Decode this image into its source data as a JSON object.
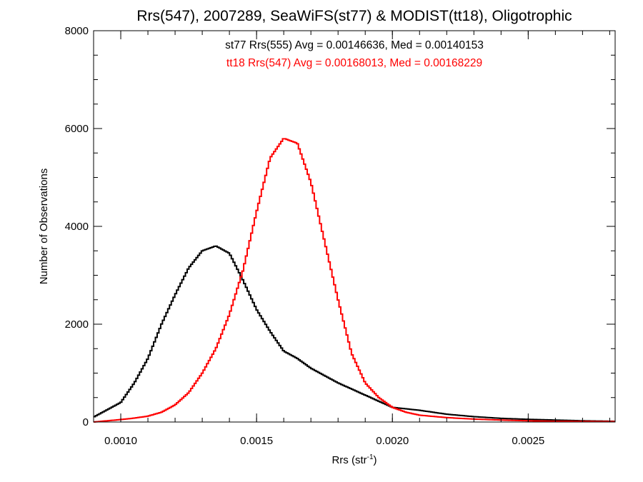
{
  "chart_data": {
    "type": "histogram",
    "title": "Rrs(547), 2007289, SeaWiFS(st77) & MODIST(tt18), Oligotrophic",
    "xlabel": {
      "main": "Rrs (str",
      "sup": "-1",
      "close": ")"
    },
    "ylabel": "Number of Observations",
    "xlim": [
      0.0009,
      0.00282
    ],
    "ylim": [
      0,
      8000
    ],
    "xticks": [
      {
        "value": 0.001,
        "label": "0.0010"
      },
      {
        "value": 0.0015,
        "label": "0.0015"
      },
      {
        "value": 0.002,
        "label": "0.0020"
      },
      {
        "value": 0.0025,
        "label": "0.0025"
      }
    ],
    "yticks": [
      {
        "value": 0,
        "label": "0"
      },
      {
        "value": 2000,
        "label": "2000"
      },
      {
        "value": 4000,
        "label": "4000"
      },
      {
        "value": 6000,
        "label": "6000"
      },
      {
        "value": 8000,
        "label": "8000"
      }
    ],
    "annotations": [
      {
        "text": "st77 Rrs(555) Avg = 0.00146636, Med = 0.00140153",
        "color": "#000000"
      },
      {
        "text": "tt18 Rrs(547) Avg = 0.00168013, Med = 0.00168229",
        "color": "#ff0000"
      }
    ],
    "grid": false,
    "series": [
      {
        "key": "st77",
        "color": "#000000",
        "x": [
          0.0009,
          0.001,
          0.00105,
          0.0011,
          0.00115,
          0.0012,
          0.00125,
          0.0013,
          0.00135,
          0.0014,
          0.00145,
          0.0015,
          0.00155,
          0.0016,
          0.00165,
          0.0017,
          0.00175,
          0.0018,
          0.0019,
          0.002,
          0.0021,
          0.0022,
          0.0023,
          0.0024,
          0.0025,
          0.0026,
          0.0027,
          0.00282
        ],
        "values": [
          100,
          400,
          800,
          1300,
          2000,
          2600,
          3150,
          3500,
          3600,
          3450,
          2900,
          2300,
          1850,
          1450,
          1300,
          1100,
          950,
          800,
          550,
          300,
          240,
          160,
          110,
          75,
          55,
          40,
          25,
          15
        ]
      },
      {
        "key": "tt18",
        "color": "#ff0000",
        "x": [
          0.0009,
          0.001,
          0.00105,
          0.0011,
          0.00115,
          0.0012,
          0.00125,
          0.0013,
          0.00135,
          0.0014,
          0.00145,
          0.0015,
          0.00155,
          0.0016,
          0.00165,
          0.0017,
          0.00175,
          0.0018,
          0.00185,
          0.0019,
          0.00195,
          0.002,
          0.00205,
          0.0021,
          0.0022,
          0.0023,
          0.0024,
          0.0025,
          0.0026,
          0.00282
        ],
        "values": [
          0,
          50,
          80,
          120,
          200,
          350,
          600,
          1000,
          1500,
          2200,
          3100,
          4300,
          5400,
          5800,
          5700,
          4900,
          3700,
          2500,
          1400,
          800,
          500,
          300,
          200,
          140,
          90,
          60,
          40,
          25,
          15,
          10
        ]
      }
    ]
  }
}
